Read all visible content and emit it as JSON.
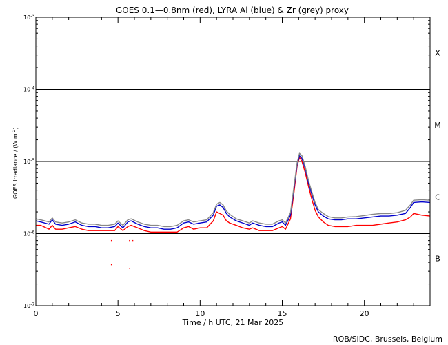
{
  "chart_data": {
    "type": "line",
    "title": "GOES 0.1—0.8nm (red), LYRA Al (blue) & Zr (grey) proxy",
    "xlabel": "Time / h UTC, 21 Mar 2025",
    "ylabel_main": "GOES Irradiance / (W m",
    "ylabel_exp": "-2",
    "ylabel_close": ")",
    "xlim": [
      0,
      24
    ],
    "ylim": [
      1e-07,
      0.001
    ],
    "y_scale": "log",
    "x_ticks": [
      {
        "value": 0,
        "label": "0"
      },
      {
        "value": 5,
        "label": "5"
      },
      {
        "value": 10,
        "label": "10"
      },
      {
        "value": 15,
        "label": "15"
      },
      {
        "value": 20,
        "label": "20"
      }
    ],
    "y_ticks": [
      {
        "value": 1e-07,
        "base": "10",
        "exp": "-7"
      },
      {
        "value": 1e-06,
        "base": "10",
        "exp": "-6"
      },
      {
        "value": 1e-05,
        "base": "10",
        "exp": "-5"
      },
      {
        "value": 0.0001,
        "base": "10",
        "exp": "-4"
      },
      {
        "value": 0.001,
        "base": "10",
        "exp": "-3"
      }
    ],
    "reference_lines": [
      1e-06,
      1e-05,
      0.0001
    ],
    "flare_classes": [
      {
        "label": "X",
        "value": 0.00032
      },
      {
        "label": "M",
        "value": 3.2e-05
      },
      {
        "label": "C",
        "value": 3.2e-06
      },
      {
        "label": "B",
        "value": 4.5e-07
      }
    ],
    "series": [
      {
        "color": "#ff0000",
        "x": [
          0,
          0.3,
          0.8,
          1.0,
          1.2,
          1.6,
          2.0,
          2.4,
          2.8,
          3.2,
          3.6,
          4.0,
          4.4,
          4.8,
          5.0,
          5.3,
          5.6,
          5.8,
          6.2,
          6.6,
          7.0,
          7.4,
          7.8,
          8.2,
          8.6,
          9.0,
          9.3,
          9.6,
          10.0,
          10.4,
          10.8,
          11.0,
          11.2,
          11.4,
          11.6,
          11.8,
          12.2,
          12.6,
          13.0,
          13.2,
          13.6,
          14.0,
          14.4,
          14.8,
          15.0,
          15.2,
          15.5,
          15.7,
          15.9,
          16.05,
          16.2,
          16.4,
          16.6,
          16.8,
          17.0,
          17.2,
          17.5,
          17.8,
          18.2,
          18.6,
          19.0,
          19.5,
          20.0,
          20.5,
          21.0,
          21.5,
          22.0,
          22.5,
          22.8,
          23.0,
          23.5,
          24.0
        ],
        "y": [
          1.3e-06,
          1.3e-06,
          1.15e-06,
          1.3e-06,
          1.15e-06,
          1.15e-06,
          1.2e-06,
          1.25e-06,
          1.15e-06,
          1.1e-06,
          1.1e-06,
          1.1e-06,
          1.1e-06,
          1.1e-06,
          1.25e-06,
          1.1e-06,
          1.25e-06,
          1.3e-06,
          1.2e-06,
          1.1e-06,
          1.05e-06,
          1.05e-06,
          1.05e-06,
          1.05e-06,
          1.05e-06,
          1.2e-06,
          1.25e-06,
          1.15e-06,
          1.2e-06,
          1.2e-06,
          1.5e-06,
          2e-06,
          1.9e-06,
          1.8e-06,
          1.5e-06,
          1.4e-06,
          1.3e-06,
          1.2e-06,
          1.15e-06,
          1.2e-06,
          1.1e-06,
          1.1e-06,
          1.1e-06,
          1.2e-06,
          1.25e-06,
          1.15e-06,
          1.6e-06,
          3.5e-06,
          8.5e-06,
          1.15e-05,
          1e-05,
          7e-06,
          4.5e-06,
          3e-06,
          2.1e-06,
          1.7e-06,
          1.45e-06,
          1.3e-06,
          1.25e-06,
          1.25e-06,
          1.25e-06,
          1.3e-06,
          1.3e-06,
          1.3e-06,
          1.35e-06,
          1.4e-06,
          1.45e-06,
          1.55e-06,
          1.7e-06,
          1.9e-06,
          1.8e-06,
          1.75e-06
        ]
      },
      {
        "color": "#0000cc",
        "x": [
          0,
          0.3,
          0.8,
          1.0,
          1.2,
          1.6,
          2.0,
          2.4,
          2.8,
          3.2,
          3.6,
          4.0,
          4.4,
          4.8,
          5.0,
          5.3,
          5.6,
          5.8,
          6.2,
          6.6,
          7.0,
          7.4,
          7.8,
          8.2,
          8.6,
          9.0,
          9.3,
          9.6,
          10.0,
          10.4,
          10.8,
          11.0,
          11.2,
          11.4,
          11.6,
          11.8,
          12.2,
          12.6,
          13.0,
          13.2,
          13.6,
          14.0,
          14.4,
          14.8,
          15.0,
          15.2,
          15.5,
          15.7,
          15.9,
          16.05,
          16.2,
          16.4,
          16.6,
          16.8,
          17.0,
          17.2,
          17.5,
          17.8,
          18.2,
          18.6,
          19.0,
          19.5,
          20.0,
          20.5,
          21.0,
          21.5,
          22.0,
          22.5,
          22.8,
          23.0,
          23.5,
          24.0
        ],
        "y": [
          1.5e-06,
          1.45e-06,
          1.35e-06,
          1.55e-06,
          1.35e-06,
          1.3e-06,
          1.35e-06,
          1.45e-06,
          1.3e-06,
          1.25e-06,
          1.25e-06,
          1.2e-06,
          1.2e-06,
          1.25e-06,
          1.4e-06,
          1.2e-06,
          1.45e-06,
          1.5e-06,
          1.35e-06,
          1.25e-06,
          1.2e-06,
          1.2e-06,
          1.15e-06,
          1.15e-06,
          1.2e-06,
          1.4e-06,
          1.45e-06,
          1.35e-06,
          1.4e-06,
          1.45e-06,
          1.8e-06,
          2.4e-06,
          2.5e-06,
          2.3e-06,
          1.9e-06,
          1.7e-06,
          1.5e-06,
          1.4e-06,
          1.3e-06,
          1.4e-06,
          1.3e-06,
          1.25e-06,
          1.25e-06,
          1.4e-06,
          1.45e-06,
          1.3e-06,
          1.8e-06,
          4e-06,
          9e-06,
          1.2e-05,
          1.1e-05,
          8e-06,
          5e-06,
          3.5e-06,
          2.5e-06,
          2e-06,
          1.75e-06,
          1.6e-06,
          1.55e-06,
          1.55e-06,
          1.6e-06,
          1.6e-06,
          1.65e-06,
          1.7e-06,
          1.75e-06,
          1.75e-06,
          1.8e-06,
          1.9e-06,
          2.3e-06,
          2.7e-06,
          2.75e-06,
          2.7e-06
        ]
      },
      {
        "color": "#888888",
        "x": [
          0,
          0.3,
          0.8,
          1.0,
          1.2,
          1.6,
          2.0,
          2.4,
          2.8,
          3.2,
          3.6,
          4.0,
          4.4,
          4.8,
          5.0,
          5.3,
          5.6,
          5.8,
          6.2,
          6.6,
          7.0,
          7.4,
          7.8,
          8.2,
          8.6,
          9.0,
          9.3,
          9.6,
          10.0,
          10.4,
          10.8,
          11.0,
          11.2,
          11.4,
          11.6,
          11.8,
          12.2,
          12.6,
          13.0,
          13.2,
          13.6,
          14.0,
          14.4,
          14.8,
          15.0,
          15.2,
          15.5,
          15.7,
          15.9,
          16.05,
          16.2,
          16.4,
          16.6,
          16.8,
          17.0,
          17.2,
          17.5,
          17.8,
          18.2,
          18.6,
          19.0,
          19.5,
          20.0,
          20.5,
          21.0,
          21.5,
          22.0,
          22.5,
          22.8,
          23.0,
          23.5,
          24.0
        ],
        "y": [
          1.6e-06,
          1.55e-06,
          1.45e-06,
          1.65e-06,
          1.45e-06,
          1.4e-06,
          1.45e-06,
          1.55e-06,
          1.4e-06,
          1.35e-06,
          1.35e-06,
          1.3e-06,
          1.3e-06,
          1.35e-06,
          1.5e-06,
          1.3e-06,
          1.55e-06,
          1.6e-06,
          1.45e-06,
          1.35e-06,
          1.3e-06,
          1.3e-06,
          1.25e-06,
          1.25e-06,
          1.3e-06,
          1.5e-06,
          1.55e-06,
          1.45e-06,
          1.5e-06,
          1.55e-06,
          1.95e-06,
          2.55e-06,
          2.7e-06,
          2.5e-06,
          2.05e-06,
          1.85e-06,
          1.6e-06,
          1.5e-06,
          1.4e-06,
          1.5e-06,
          1.4e-06,
          1.35e-06,
          1.35e-06,
          1.5e-06,
          1.55e-06,
          1.4e-06,
          1.95e-06,
          4.3e-06,
          9.5e-06,
          1.3e-05,
          1.2e-05,
          8.5e-06,
          5.4e-06,
          3.8e-06,
          2.7e-06,
          2.15e-06,
          1.9e-06,
          1.72e-06,
          1.65e-06,
          1.65e-06,
          1.7e-06,
          1.72e-06,
          1.78e-06,
          1.85e-06,
          1.9e-06,
          1.9e-06,
          1.95e-06,
          2.1e-06,
          2.5e-06,
          2.9e-06,
          2.95e-06,
          2.9e-06
        ]
      }
    ],
    "outliers": {
      "color": "#ff0000",
      "x": [
        4.6,
        4.6,
        5.7,
        5.7,
        5.9
      ],
      "y": [
        8e-07,
        3.7e-07,
        8e-07,
        3.3e-07,
        8e-07
      ]
    },
    "credit": "ROB/SIDC, Brussels, Belgium"
  }
}
